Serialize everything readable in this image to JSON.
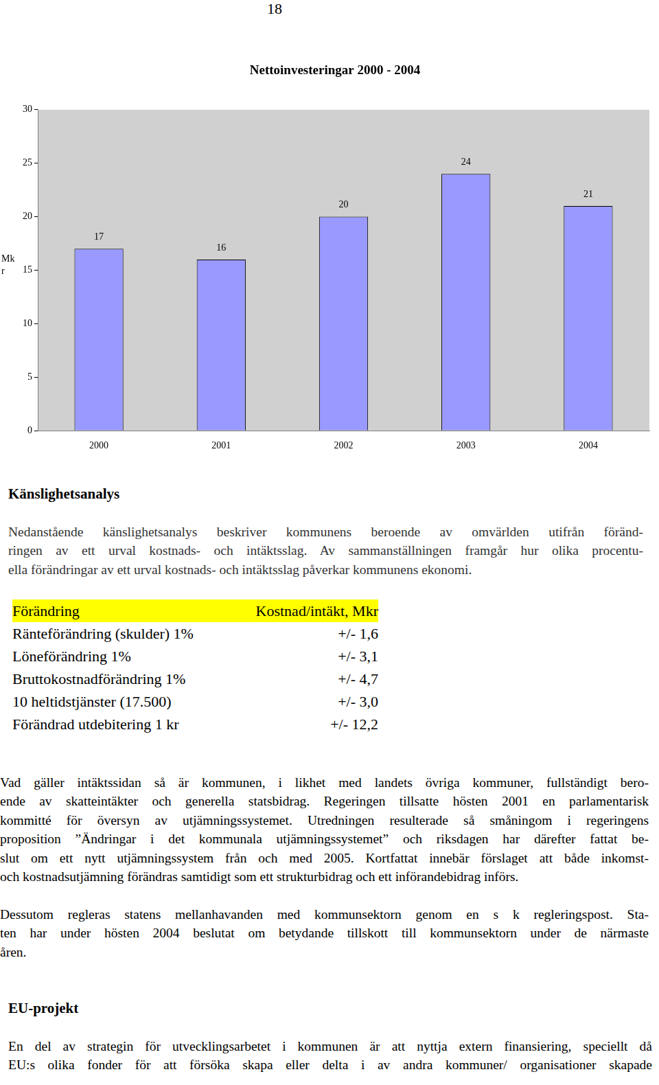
{
  "page_number": "18",
  "chart_data": {
    "type": "bar",
    "title": "Nettoinvesteringar 2000 - 2004",
    "y_label": "Mkr",
    "categories": [
      "2000",
      "2001",
      "2002",
      "2003",
      "2004"
    ],
    "values": [
      17,
      16,
      20,
      24,
      21
    ],
    "color": "#9999ff",
    "ylim": [
      0,
      30
    ],
    "yticks": [
      0,
      5,
      10,
      15,
      20,
      25,
      30
    ],
    "grid": false,
    "data_labels": true
  },
  "sections": [
    {
      "heading": "Känslighetsanalys",
      "paragraphs": [
        [
          "Nedanstående känslighetsanalys beskriver kommunens beroende av omvärlden utifrån föränd-",
          "ringen av ett urval kostnads- och intäktsslag. Av sammanställningen framgår hur olika procentu-",
          "ella förändringar av ett urval kostnads- och intäktsslag påverkar kommunens ekonomi."
        ]
      ],
      "table": {
        "header": [
          "Förändring",
          "Kostnad/intäkt, Mkr"
        ],
        "rows": [
          [
            "Ränteförändring (skulder) 1%",
            "+/- 1,6"
          ],
          [
            "Löneförändring 1%",
            "+/- 3,1"
          ],
          [
            "Bruttokostnadförändring 1%",
            "+/- 4,7"
          ],
          [
            "10 heltidstjänster (17.500)",
            "+/- 3,0"
          ],
          [
            "Förändrad utdebitering 1 kr",
            "+/- 12,2"
          ]
        ]
      },
      "paragraphs_after": [
        [
          "Vad gäller intäktssidan så är kommunen, i likhet med landets övriga kommuner, fullständigt bero-",
          "ende av skatteintäkter och generella statsbidrag. Regeringen tillsatte hösten 2001 en parlamentarisk",
          "kommitté för översyn av utjämningssystemet. Utredningen resulterade så småningom i regeringens",
          "proposition ”Ändringar i det kommunala utjämningssystemet” och riksdagen har därefter fattat be-",
          "slut om ett nytt utjämningssystem från och med 2005. Kortfattat innebär förslaget att både inkomst-",
          "och kostnadsutjämning förändras  samtidigt som ett strukturbidrag och ett införandebidrag införs."
        ],
        [
          "Dessutom regleras statens mellanhavanden med kommunsektorn genom en s k regleringspost. Sta-",
          "ten har under hösten 2004 beslutat om betydande tillskott till kommunsektorn under de närmaste",
          "åren."
        ]
      ]
    },
    {
      "heading": "EU-projekt",
      "paragraphs": [
        [
          "En del av strategin för utvecklingsarbetet i kommunen är att nyttja extern finansiering, speciellt då",
          "EU:s olika fonder för att försöka skapa eller delta i av andra kommuner/ organisationer skapade"
        ]
      ]
    }
  ]
}
